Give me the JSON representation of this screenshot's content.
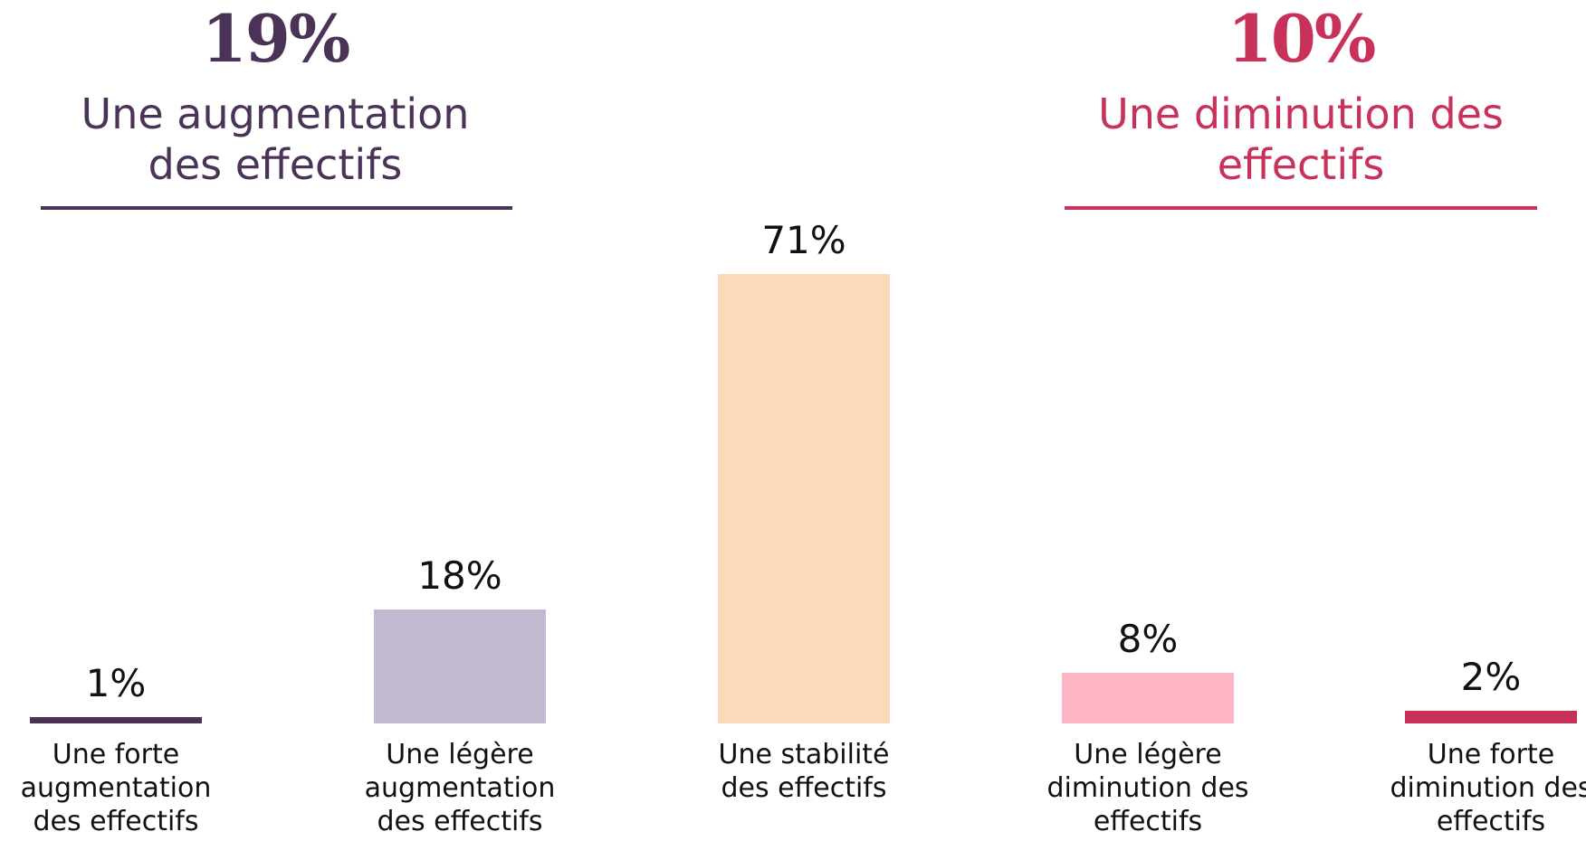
{
  "chart_data": {
    "type": "bar",
    "categories": [
      "Une forte augmentation des effectifs",
      "Une légère augmentation des effectifs",
      "Une stabilité des effectifs",
      "Une légère diminution des effectifs",
      "Une forte diminution des effectifs"
    ],
    "values": [
      1,
      18,
      71,
      8,
      2
    ],
    "value_labels": [
      "1%",
      "18%",
      "71%",
      "8%",
      "2%"
    ],
    "colors": [
      "#4b3358",
      "#c2b9d1",
      "#fcdab9",
      "#fdb5c5",
      "#c8325a"
    ],
    "annotations": [
      {
        "value": 19,
        "value_label": "19%",
        "text": "Une augmentation des effectifs",
        "color": "#4b3358"
      },
      {
        "value": 10,
        "value_label": "10%",
        "text": "Une diminution des effectifs",
        "color": "#c8325a"
      }
    ]
  }
}
